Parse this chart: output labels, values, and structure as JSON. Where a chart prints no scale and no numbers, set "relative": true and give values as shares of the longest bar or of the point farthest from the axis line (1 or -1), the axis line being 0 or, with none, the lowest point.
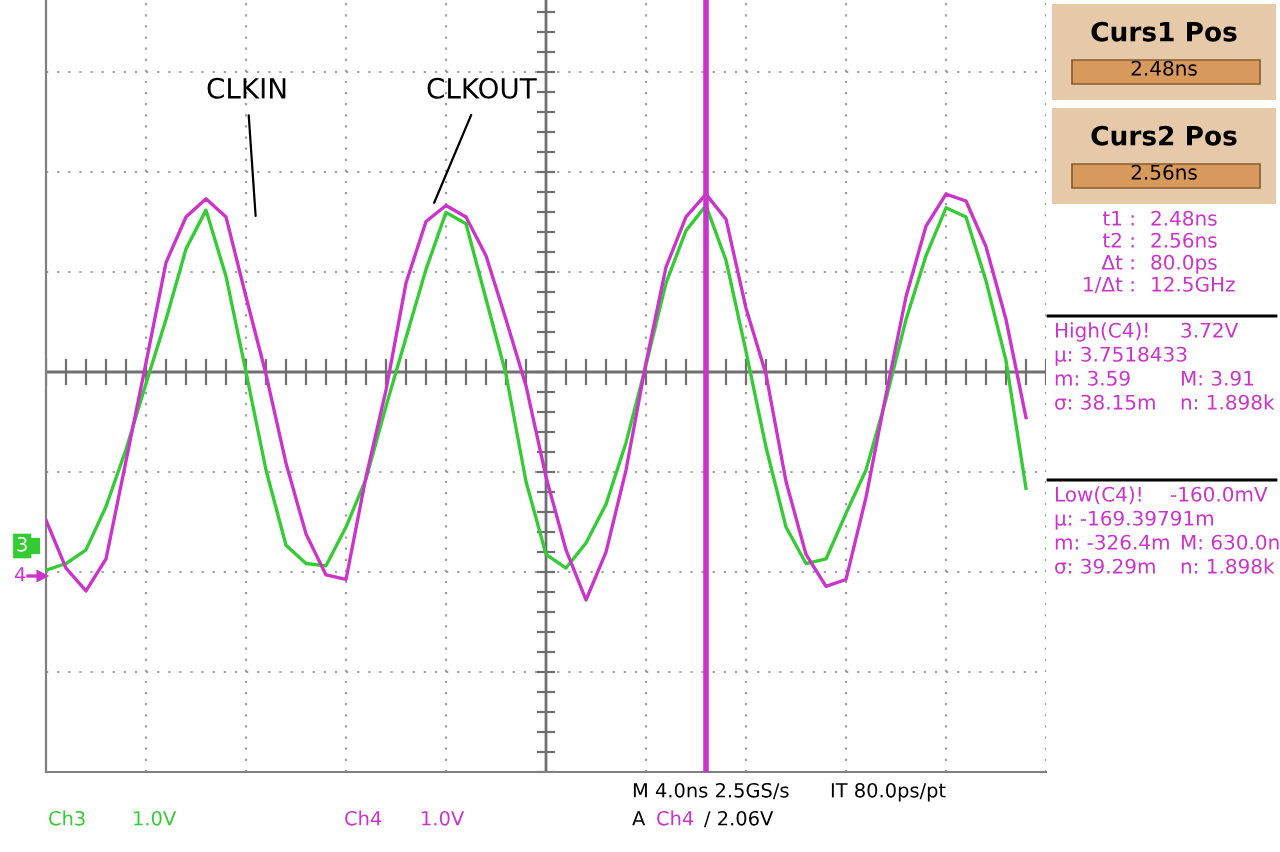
{
  "chart_data": [
    {
      "type": "line",
      "relative": true,
      "grid": true,
      "legend": false,
      "marker": "none",
      "line_style": "solid",
      "categories": [
        null,
        null,
        null,
        null,
        null,
        null,
        null,
        null,
        null,
        null,
        null,
        null,
        null,
        null,
        null,
        null,
        null,
        null,
        null,
        null,
        null,
        null,
        null,
        null,
        null,
        null,
        null,
        null,
        null,
        null,
        null,
        null,
        null,
        null,
        null,
        null,
        null,
        null,
        null,
        null,
        null,
        null,
        null,
        null,
        null,
        null,
        null,
        null,
        null,
        null
      ],
      "series": [
        {
          "name": "CLKIN",
          "color": "#33cc33",
          "values": [
            -0.87,
            -0.84,
            -0.78,
            -0.59,
            -0.34,
            -0.05,
            0.23,
            0.54,
            0.71,
            0.42,
            0,
            -0.43,
            -0.76,
            -0.84,
            -0.85,
            -0.68,
            -0.47,
            -0.15,
            0.15,
            0.45,
            0.7,
            0.65,
            0.32,
            -0.01,
            -0.48,
            -0.8,
            -0.86,
            -0.75,
            -0.58,
            -0.31,
            0.03,
            0.39,
            0.62,
            0.73,
            0.49,
            0.09,
            -0.33,
            -0.68,
            -0.84,
            -0.82,
            -0.62,
            -0.43,
            -0.12,
            0.23,
            0.51,
            0.72,
            0.68,
            0.4,
            0.05,
            -0.51
          ]
        },
        {
          "name": "CLKOUT",
          "color": "#cc33cc",
          "values": [
            -0.65,
            -0.86,
            -0.96,
            -0.82,
            -0.39,
            0.04,
            0.48,
            0.68,
            0.76,
            0.68,
            0.33,
            -0.01,
            -0.4,
            -0.71,
            -0.89,
            -0.91,
            -0.46,
            -0.08,
            0.39,
            0.66,
            0.73,
            0.68,
            0.51,
            0.23,
            -0.06,
            -0.46,
            -0.78,
            -1.0,
            -0.79,
            -0.43,
            0.04,
            0.46,
            0.68,
            0.78,
            0.67,
            0.28,
            -0.01,
            -0.48,
            -0.8,
            -0.94,
            -0.91,
            -0.55,
            -0.1,
            0.33,
            0.64,
            0.78,
            0.75,
            0.55,
            0.23,
            -0.2
          ]
        }
      ],
      "annotations": [
        "3",
        "4",
        "Ch3",
        "1.0V",
        "Ch4",
        "1.0V",
        "M 4.0ns 2.5GS/s",
        "IT 80.0ps/pt",
        "A",
        "Ch4",
        "/ 2.06V"
      ]
    },
    {
      "type": "other",
      "annotations": [
        "Curs1 Pos",
        "2.48ns",
        "Curs2 Pos",
        "2.56ns",
        "t1 :",
        "2.48ns",
        "t2 :",
        "2.56ns",
        "Δt :",
        "80.0ps",
        "1/Δt :",
        "12.5GHz",
        "High(C4)!",
        "3.72V",
        "μ: 3.7518433",
        "m: 3.59",
        "M: 3.91",
        "σ: 38.15m",
        "n: 1.898k",
        "Low(C4)!",
        "-160.0mV",
        "μ: -169.39791m",
        "m: -326.4m",
        "M: 630.0n",
        "σ: 39.29m",
        "n: 1.898k"
      ]
    }
  ]
}
